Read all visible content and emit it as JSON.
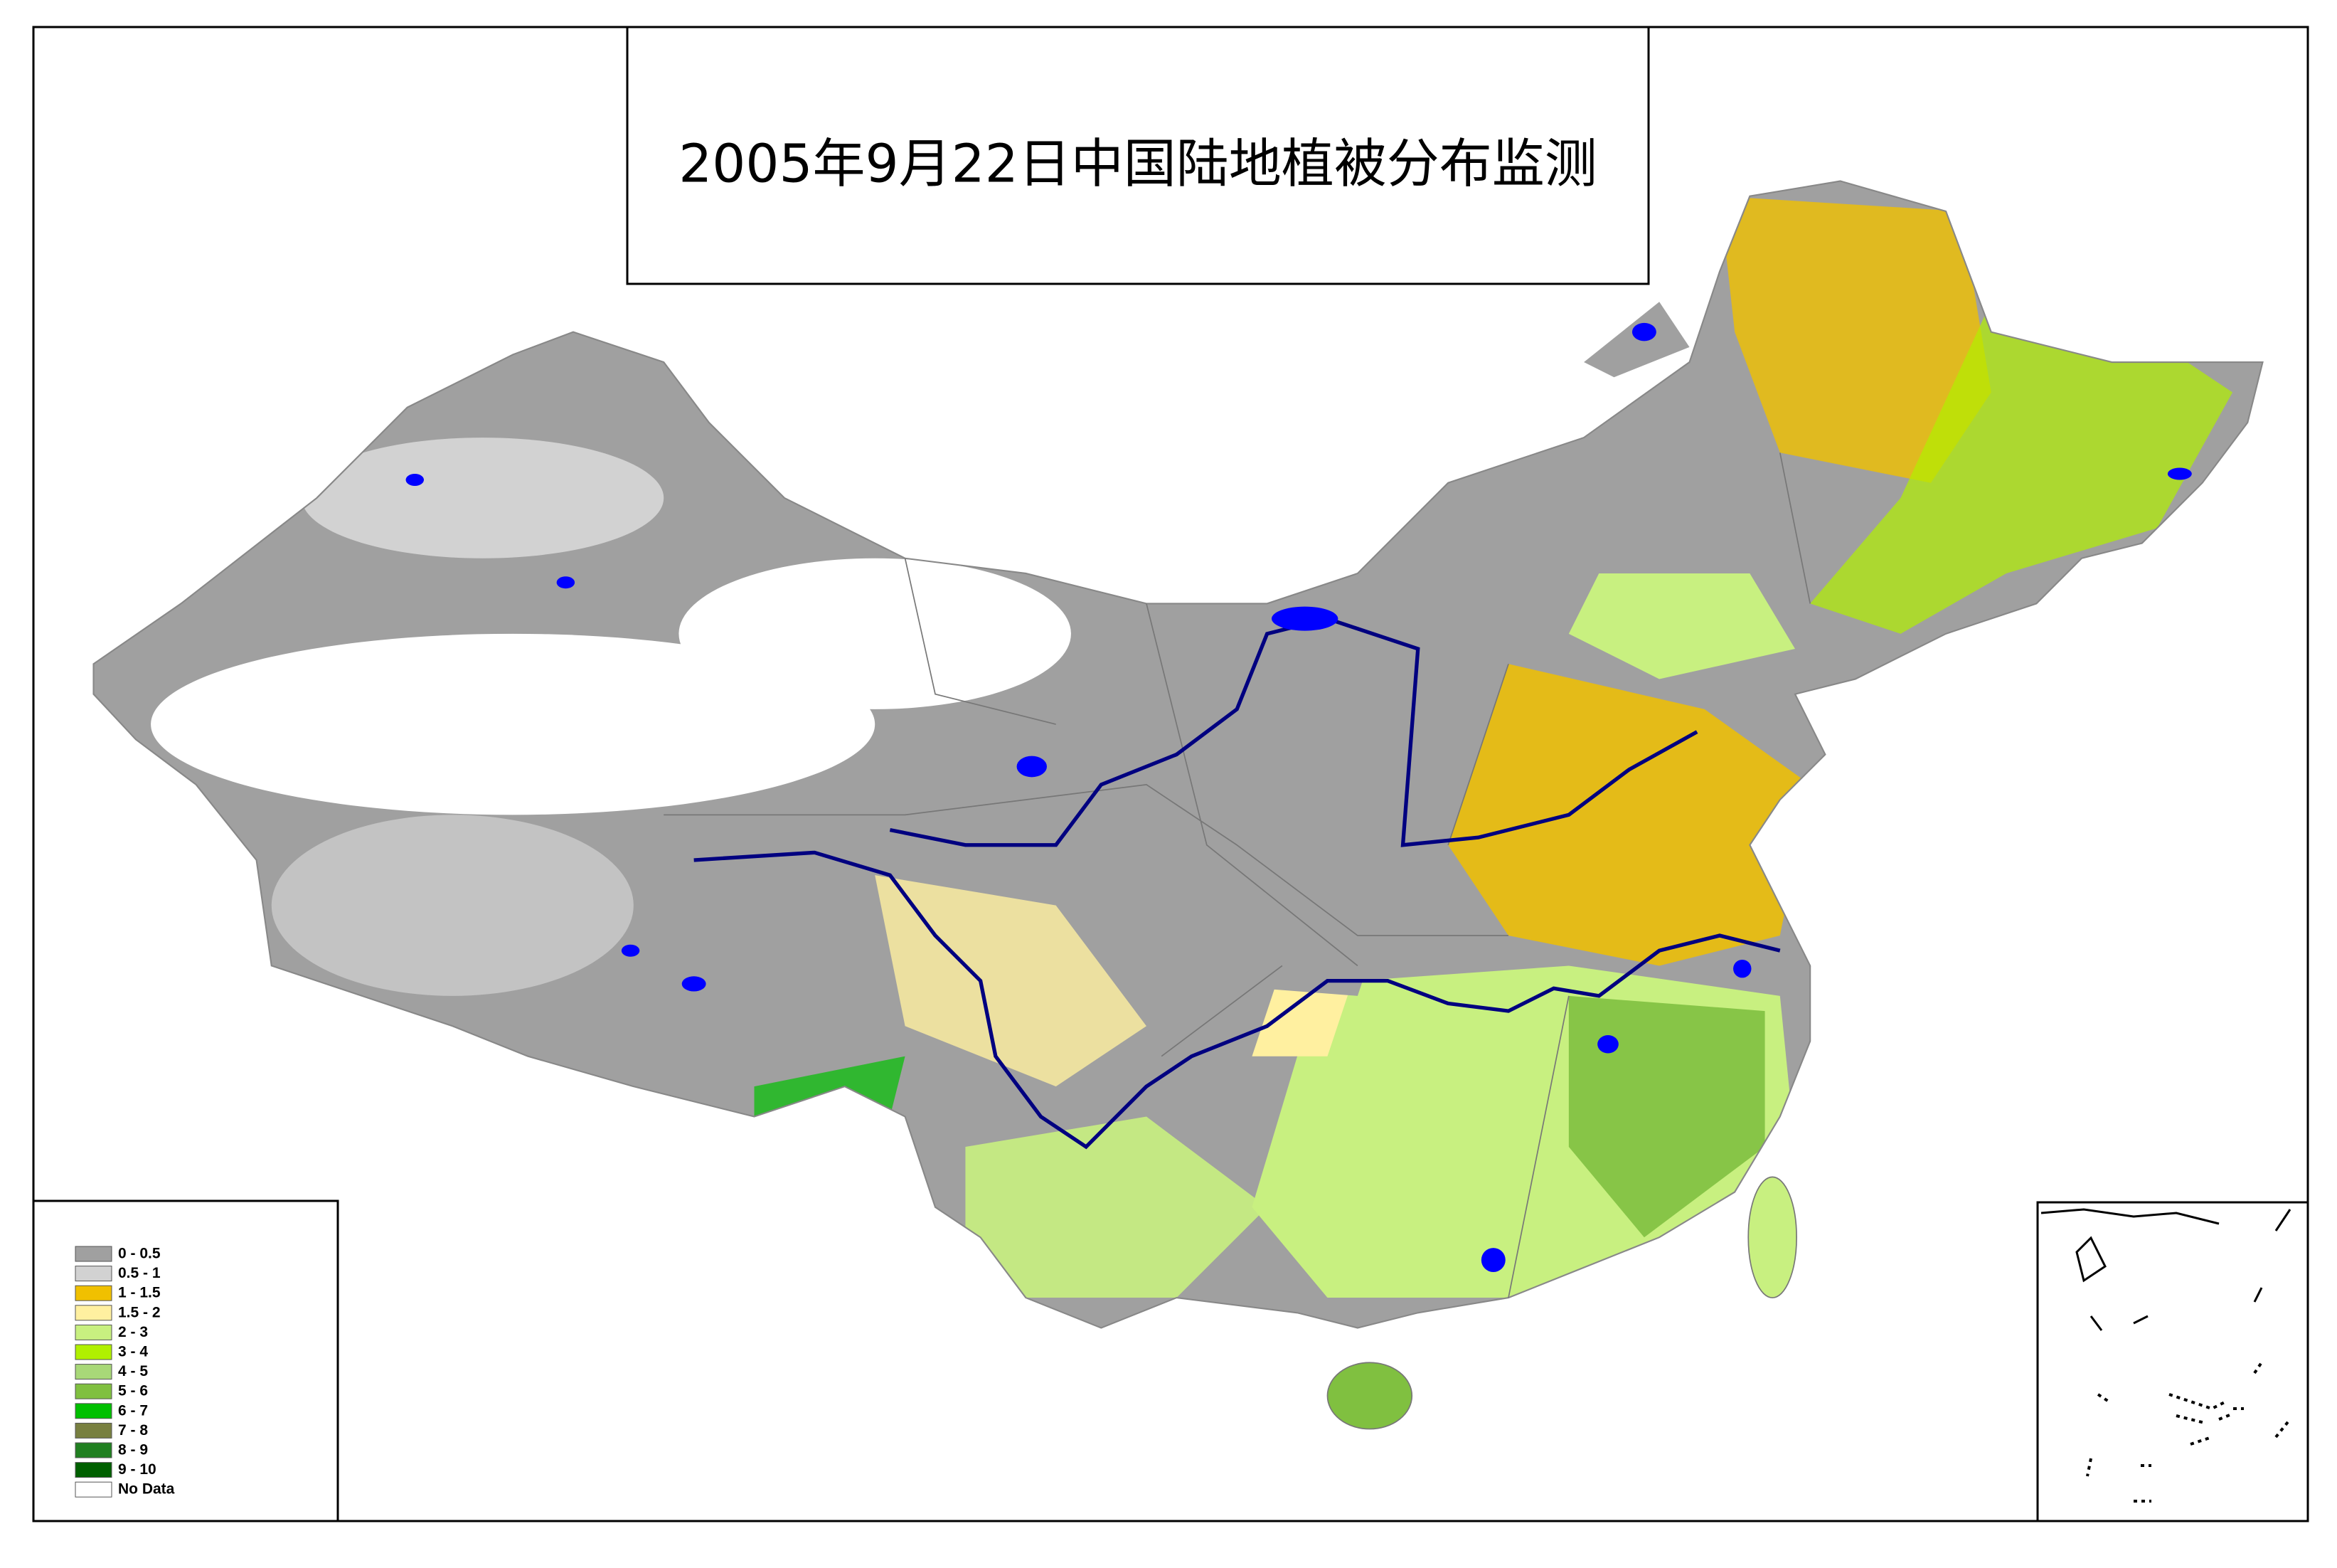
{
  "title": "2005年9月22日中国陆地植被分布监测",
  "legend": {
    "items": [
      {
        "label": "0 - 0.5",
        "color": "#a0a0a0"
      },
      {
        "label": "0.5 - 1",
        "color": "#d2d2d2"
      },
      {
        "label": "1 - 1.5",
        "color": "#f0c000"
      },
      {
        "label": "1.5 - 2",
        "color": "#fff0a0"
      },
      {
        "label": "2 - 3",
        "color": "#c8f080"
      },
      {
        "label": "3 - 4",
        "color": "#b0f000"
      },
      {
        "label": "4 - 5",
        "color": "#a8d878"
      },
      {
        "label": "5 - 6",
        "color": "#80c040"
      },
      {
        "label": "6 - 7",
        "color": "#00c000"
      },
      {
        "label": "7 - 8",
        "color": "#788040"
      },
      {
        "label": "8 - 9",
        "color": "#208020"
      },
      {
        "label": "9 - 10",
        "color": "#006000"
      },
      {
        "label": "No Data",
        "color": "#ffffff"
      }
    ]
  }
}
